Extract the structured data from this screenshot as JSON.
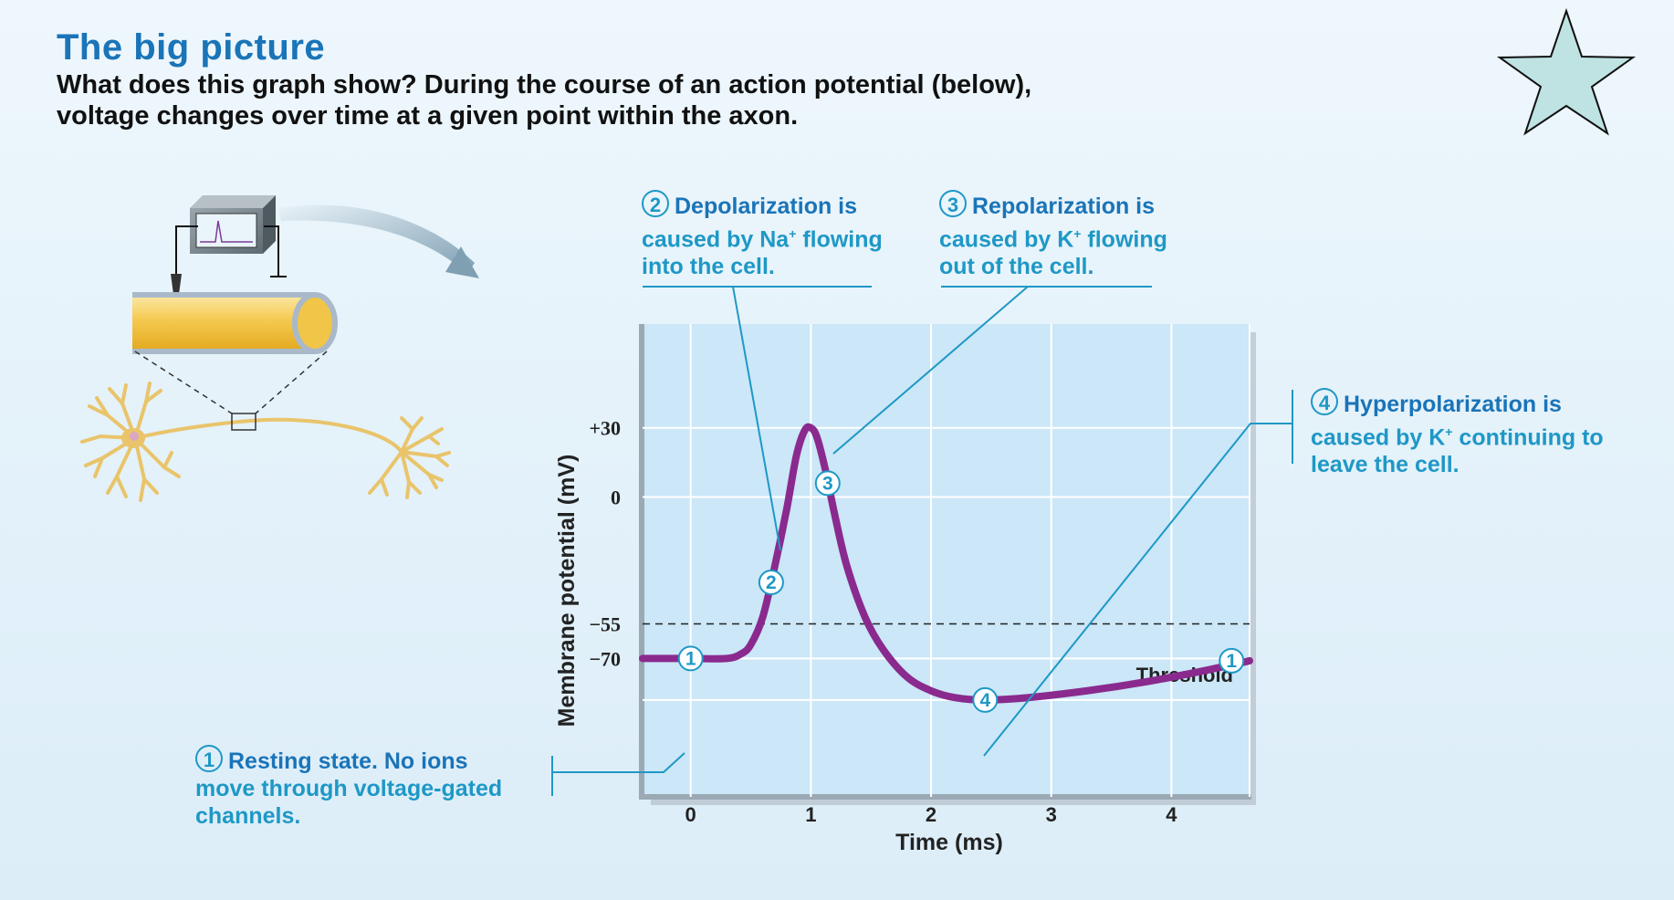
{
  "header": {
    "title": "The big picture",
    "subtitle": "What does this graph show? During the course of an action potential (below), voltage changes over time at a given point within the  axon."
  },
  "callouts": {
    "resting": {
      "num": "1",
      "lead": "Resting state. No ions",
      "body": "move through voltage-gated channels."
    },
    "depolarization": {
      "num": "2",
      "lead": "Depolarization is",
      "body_pre": "caused by Na",
      "sup": "+",
      "body_post": " flowing into the cell."
    },
    "repolarization": {
      "num": "3",
      "lead": "Repolarization is",
      "body_pre": "caused by K",
      "sup": "+",
      "body_post": " flowing out of the cell."
    },
    "hyperpolarization": {
      "num": "4",
      "lead": "Hyperpolarization  is",
      "body_pre": "caused by K",
      "sup": "+",
      "body_post": " continuing to leave the cell."
    }
  },
  "chart_data": {
    "type": "line",
    "xlabel": "Time (ms)",
    "ylabel": "Membrane potential (mV)",
    "x_ticks": [
      "0",
      "1",
      "2",
      "3",
      "4"
    ],
    "y_ticks": [
      "+30",
      "0",
      "−55",
      "−70"
    ],
    "threshold_label": "Threshold",
    "threshold_value": -55,
    "xlim": [
      -0.4,
      4.65
    ],
    "ylim": [
      -130,
      75
    ],
    "series": [
      {
        "points": [
          [
            -0.4,
            -70
          ],
          [
            0,
            -70
          ],
          [
            0.3,
            -70
          ],
          [
            0.42,
            -68
          ],
          [
            0.5,
            -64
          ],
          [
            0.6,
            -52
          ],
          [
            0.7,
            -30
          ],
          [
            0.8,
            -5
          ],
          [
            0.88,
            18
          ],
          [
            0.95,
            29
          ],
          [
            1.0,
            30
          ],
          [
            1.05,
            26
          ],
          [
            1.12,
            12
          ],
          [
            1.2,
            -8
          ],
          [
            1.3,
            -30
          ],
          [
            1.45,
            -52
          ],
          [
            1.6,
            -66
          ],
          [
            1.8,
            -78
          ],
          [
            2.0,
            -84
          ],
          [
            2.2,
            -87
          ],
          [
            2.45,
            -88
          ],
          [
            2.8,
            -87
          ],
          [
            3.3,
            -84
          ],
          [
            3.8,
            -80
          ],
          [
            4.3,
            -75
          ],
          [
            4.65,
            -71
          ]
        ]
      }
    ],
    "markers": [
      {
        "label": "1",
        "x": 0.0,
        "y": -70
      },
      {
        "label": "2",
        "x": 0.67,
        "y": -37
      },
      {
        "label": "3",
        "x": 1.14,
        "y": 6
      },
      {
        "label": "4",
        "x": 2.45,
        "y": -88
      },
      {
        "label": "1",
        "x": 4.5,
        "y": -71
      }
    ],
    "colors": {
      "curve": "#8a2a8e",
      "plot_bg": "#cbe7f8",
      "callout": "#1e98c6",
      "title": "#1a74b8"
    }
  },
  "decor": {
    "star_icon_color": "#bfe3e3",
    "axon_color": "#f2c85a",
    "neuron_color": "#e9c46a"
  }
}
